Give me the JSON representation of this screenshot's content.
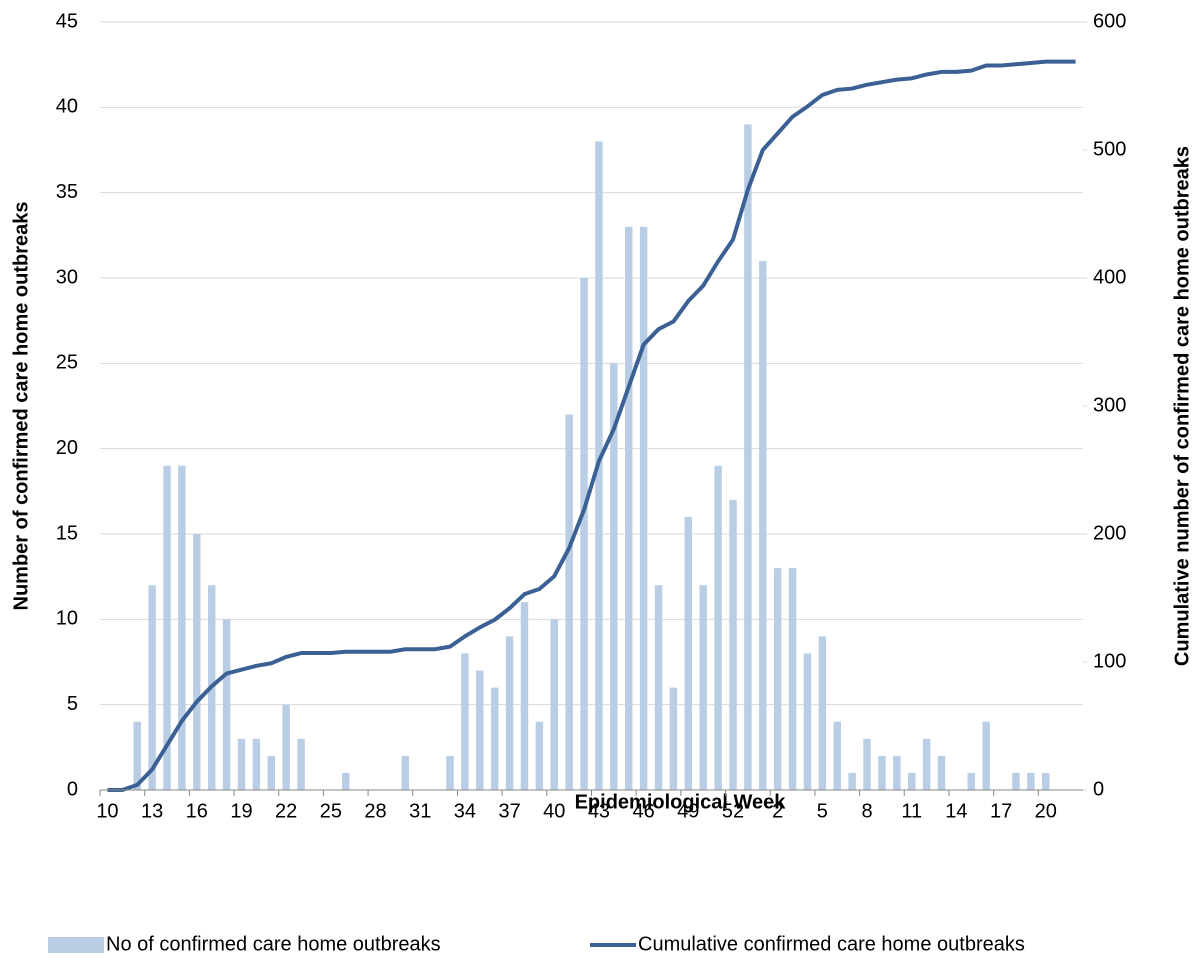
{
  "chart_data": {
    "type": "bar_line",
    "x_label": "Epidemiological Week",
    "y_label": "Number of confirmed care home outbreaks",
    "y2_label": "Cumulative number of confirmed care home outbreaks",
    "categories": [
      "10",
      null,
      null,
      "13",
      null,
      null,
      "16",
      null,
      null,
      "19",
      null,
      null,
      "22",
      null,
      null,
      "25",
      null,
      null,
      "28",
      null,
      null,
      "31",
      null,
      null,
      "34",
      null,
      null,
      "37",
      null,
      null,
      "40",
      null,
      null,
      "43",
      null,
      null,
      "46",
      null,
      null,
      "49",
      null,
      null,
      "52",
      null,
      null,
      "2",
      null,
      null,
      "5",
      null,
      null,
      "8",
      null,
      null,
      "11",
      null,
      null,
      "14",
      null,
      null,
      "17",
      null,
      null,
      "20",
      null,
      null
    ],
    "series": [
      {
        "name": "No of confirmed care home outbreaks",
        "type": "bar",
        "color": "#b9cde5",
        "values": [
          0,
          0,
          4,
          12,
          19,
          19,
          15,
          12,
          10,
          3,
          3,
          2,
          5,
          3,
          0,
          0,
          1,
          0,
          0,
          0,
          2,
          0,
          0,
          2,
          8,
          7,
          6,
          9,
          11,
          4,
          10,
          22,
          30,
          38,
          25,
          33,
          33,
          12,
          6,
          16,
          12,
          19,
          17,
          39,
          31,
          13,
          13,
          8,
          9,
          4,
          1,
          3,
          2,
          2,
          1,
          3,
          2,
          0,
          1,
          4,
          0,
          1,
          1,
          1,
          0,
          0
        ]
      },
      {
        "name": "Cumulative confirmed care home outbreaks",
        "type": "line",
        "axis": "y2",
        "color": "#3b6093",
        "values": [
          0,
          0,
          4,
          16,
          35,
          54,
          69,
          81,
          91,
          94,
          97,
          99,
          104,
          107,
          107,
          107,
          108,
          108,
          108,
          108,
          110,
          110,
          110,
          112,
          120,
          127,
          133,
          142,
          153,
          157,
          167,
          189,
          219,
          257,
          282,
          315,
          348,
          360,
          366,
          382,
          394,
          413,
          430,
          469,
          500,
          513,
          526,
          534,
          543,
          547,
          548,
          551,
          553,
          555,
          556,
          559,
          561,
          561,
          562,
          566,
          566,
          567,
          568,
          569,
          569,
          569
        ]
      }
    ],
    "ylim": [
      0,
      45
    ],
    "yticks": [
      0,
      5,
      10,
      15,
      20,
      25,
      30,
      35,
      40,
      45
    ],
    "y2lim": [
      0,
      600
    ],
    "y2ticks": [
      0,
      100,
      200,
      300,
      400,
      500,
      600
    ],
    "grid": true,
    "legend": "bottom"
  }
}
